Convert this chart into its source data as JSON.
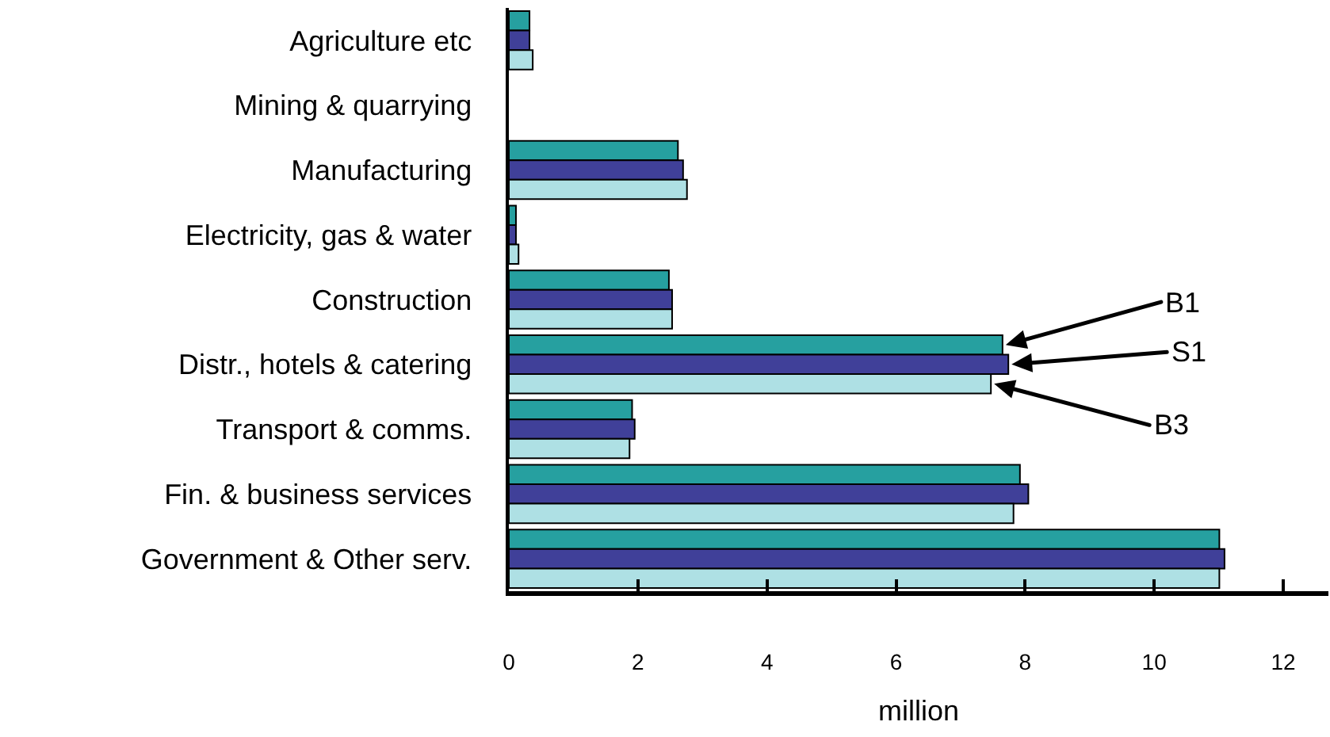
{
  "chart_data": {
    "type": "bar",
    "orientation": "horizontal",
    "xlabel": "million",
    "categories": [
      "Agriculture etc",
      "Mining & quarrying",
      "Manufacturing",
      "Electricity, gas & water",
      "Construction",
      "Distr., hotels & catering",
      "Transport & comms.",
      "Fin. & business services",
      "Government & Other serv."
    ],
    "series": [
      {
        "name": "B1",
        "color": "#26a0a0",
        "values": [
          0.32,
          null,
          2.62,
          0.11,
          2.48,
          7.65,
          1.91,
          7.92,
          11.01
        ]
      },
      {
        "name": "S1",
        "color": "#404099",
        "values": [
          0.32,
          null,
          2.7,
          0.11,
          2.53,
          7.74,
          1.95,
          8.05,
          11.09
        ]
      },
      {
        "name": "B3",
        "color": "#aee0e4",
        "values": [
          0.37,
          null,
          2.76,
          0.15,
          2.53,
          7.47,
          1.87,
          7.82,
          11.01
        ]
      }
    ],
    "xlim": [
      0,
      12.7
    ],
    "xticks": [
      0,
      2,
      4,
      6,
      8,
      10,
      12
    ],
    "grid": false,
    "legend": "right"
  }
}
